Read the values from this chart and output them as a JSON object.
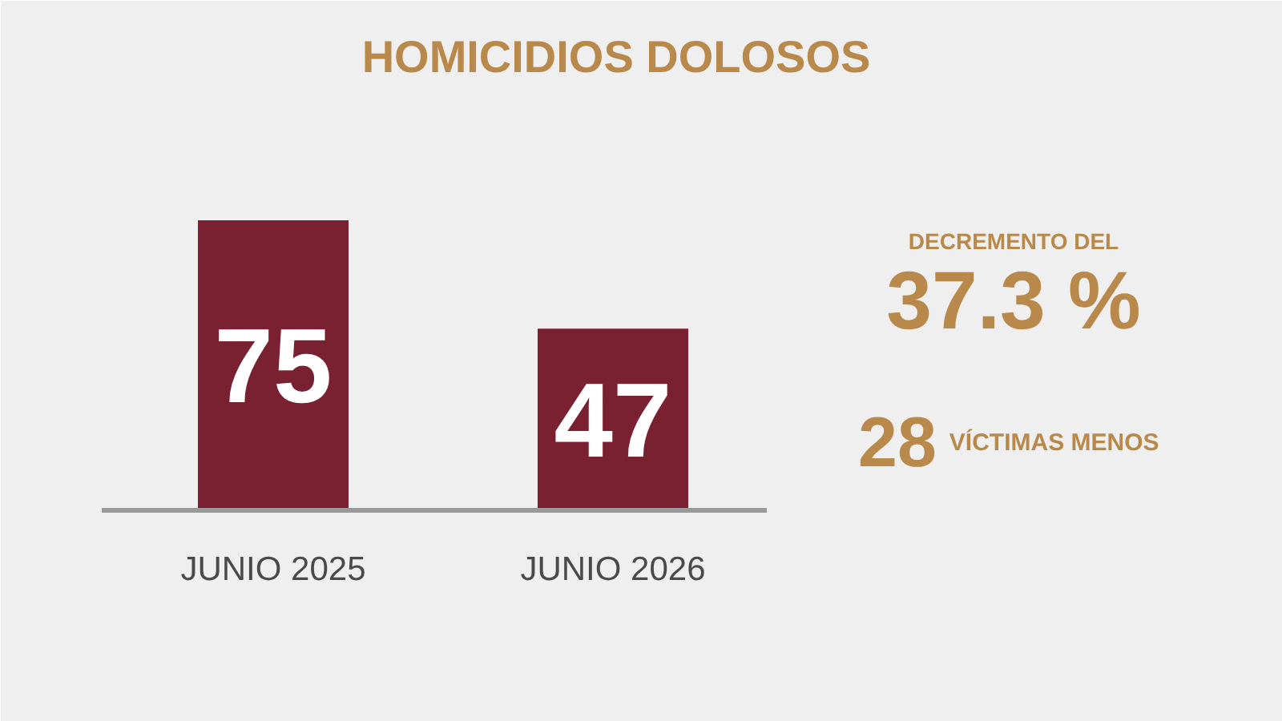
{
  "chart_data": {
    "type": "bar",
    "title": "HOMICIDIOS DOLOSOS",
    "categories": [
      "JUNIO 2025",
      "JUNIO 2026"
    ],
    "values": [
      75,
      47
    ],
    "color": "#7a2131",
    "data_labels": true,
    "annotations": [
      "DECREMENTO DEL",
      "37.3 %",
      "28",
      "VÍCTIMAS MENOS"
    ]
  }
}
